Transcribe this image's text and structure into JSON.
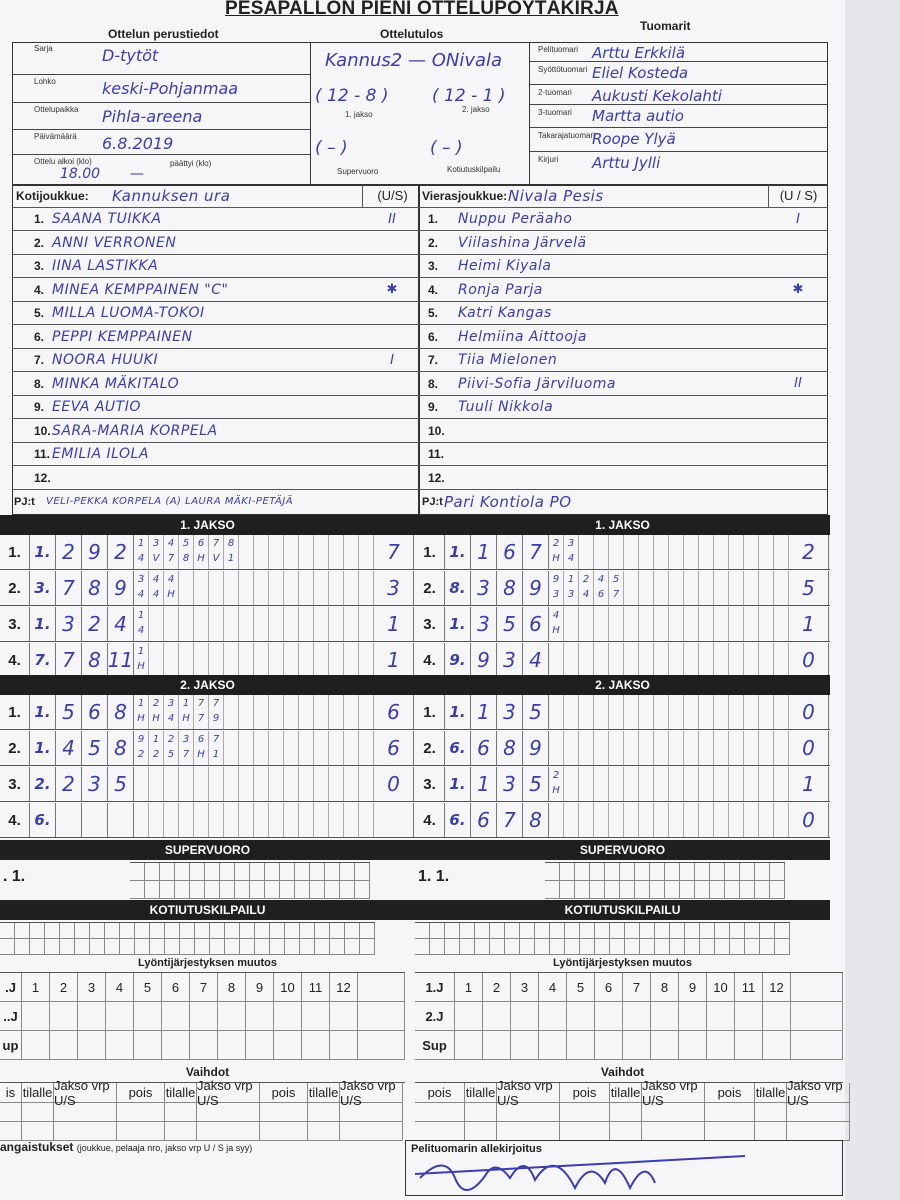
{
  "title": "PESÄPALLON PIENI OTTELUPÖYTÄKIRJA",
  "headers": {
    "basic": "Ottelun perustiedot",
    "result": "Ottelutulos",
    "referees": "Tuomarit"
  },
  "basic": [
    {
      "label": "Sarja",
      "value": "D-tytöt"
    },
    {
      "label": "Lohko",
      "value": "keski-Pohjanmaa"
    },
    {
      "label": "Ottelupaikka",
      "value": "Pihla-areena"
    },
    {
      "label": "Päivämäärä",
      "value": "6.8.2019"
    }
  ],
  "start": {
    "label": "Ottelu alkoi (klo)",
    "value": "18.00",
    "end_label": "päättyi (klo)",
    "end_value": "—"
  },
  "result": {
    "teams": "Kannus2 — ONivala",
    "jakso1": "( 12 - 8 )",
    "jakso2": "( 12 - 1 )",
    "jakso1_label": "1. jakso",
    "jakso2_label": "2. jakso",
    "super": "(   –   )",
    "kotiutus": "(   –   )",
    "super_label": "Supervuoro",
    "kotiutus_label": "Kotiutuskilpailu"
  },
  "referees": [
    {
      "label": "Pelituomari",
      "value": "Arttu Erkkilä"
    },
    {
      "label": "Syöttötuomari",
      "value": "Eliel Kosteda"
    },
    {
      "label": "2-tuomari",
      "value": "Aukusti Kekolahti"
    },
    {
      "label": "3-tuomari",
      "value": "Martta autio"
    },
    {
      "label": "Takarajatuomari",
      "value": "Roope Ylyä"
    },
    {
      "label": "Kirjuri",
      "value": "Arttu Jylli"
    }
  ],
  "home": {
    "label": "Kotijoukkue:",
    "name": "Kannuksen urа",
    "us": "(U/S)",
    "us_selected": "S",
    "players": [
      {
        "n": "1.",
        "name": "SAANA TUIKKA",
        "m": "II"
      },
      {
        "n": "2.",
        "name": "ANNI VERRONEN",
        "m": ""
      },
      {
        "n": "3.",
        "name": "IINA LASTIKKA",
        "m": ""
      },
      {
        "n": "4.",
        "name": "MINEA KEMPPAINEN \"C\"",
        "m": "✱"
      },
      {
        "n": "5.",
        "name": "MILLA LUOMA-TOKOI",
        "m": ""
      },
      {
        "n": "6.",
        "name": "PEPPI KEMPPAINEN",
        "m": ""
      },
      {
        "n": "7.",
        "name": "NOORA HUUKI",
        "m": "I"
      },
      {
        "n": "8.",
        "name": "MINKA MÄKITALO",
        "m": ""
      },
      {
        "n": "9.",
        "name": "EEVA AUTIO",
        "m": ""
      },
      {
        "n": "10.",
        "name": "SARA-MARIA KORPELA",
        "m": ""
      },
      {
        "n": "11.",
        "name": "EMILIA ILOLA",
        "m": ""
      },
      {
        "n": "12.",
        "name": "",
        "m": ""
      }
    ],
    "pj_label": "PJ:t",
    "pj": "VELI-PEKKA KORPELA (A) LAURA MÄKI-PETÄJÄ"
  },
  "away": {
    "label": "Vierasjoukkue:",
    "name": "Nivala Pesis",
    "us": "(U / S)",
    "players": [
      {
        "n": "1.",
        "name": "Nuppu Peräaho",
        "m": "I"
      },
      {
        "n": "2.",
        "name": "Viilashina Järvelä",
        "m": ""
      },
      {
        "n": "3.",
        "name": "Heimi Kiyala",
        "m": ""
      },
      {
        "n": "4.",
        "name": "Ronja Parja",
        "m": "✱"
      },
      {
        "n": "5.",
        "name": "Katri Kangas",
        "m": ""
      },
      {
        "n": "6.",
        "name": "Helmiina Aittoоja",
        "m": ""
      },
      {
        "n": "7.",
        "name": "Tiia Mielonen",
        "m": ""
      },
      {
        "n": "8.",
        "name": "Piivi-Sofia Järviluoma",
        "m": "II"
      },
      {
        "n": "9.",
        "name": "Tuuli Nikkola",
        "m": ""
      },
      {
        "n": "10.",
        "name": "",
        "m": ""
      },
      {
        "n": "11.",
        "name": "",
        "m": ""
      },
      {
        "n": "12.",
        "name": "",
        "m": ""
      }
    ],
    "pj_label": "PJ:t",
    "pj": "Pari Kontiola PO"
  },
  "periods": [
    {
      "title": "1. JAKSO",
      "home": [
        {
          "l": "1.",
          "c": [
            "1.",
            "2",
            "9",
            "2"
          ],
          "t": [
            "1",
            "3",
            "4",
            "5",
            "6",
            "7",
            "8"
          ],
          "b": [
            "4",
            "V",
            "7",
            "8",
            "H",
            "V",
            "1"
          ],
          "r": "7"
        },
        {
          "l": "2.",
          "c": [
            "3.",
            "7",
            "8",
            "9"
          ],
          "t": [
            "3",
            "4",
            "4"
          ],
          "b": [
            "4",
            "4",
            "H"
          ],
          "r": "3"
        },
        {
          "l": "3.",
          "c": [
            "1.",
            "3",
            "2",
            "4"
          ],
          "t": [
            "1"
          ],
          "b": [
            "4"
          ],
          "r": "1"
        },
        {
          "l": "4.",
          "c": [
            "7.",
            "7",
            "8",
            "11"
          ],
          "t": [
            "1"
          ],
          "b": [
            "H"
          ],
          "r": "1"
        }
      ],
      "away": [
        {
          "l": "1.",
          "c": [
            "1.",
            "1",
            "6",
            "7"
          ],
          "t": [
            "2",
            "3"
          ],
          "b": [
            "H",
            "4"
          ],
          "r": "2"
        },
        {
          "l": "2.",
          "c": [
            "8.",
            "3",
            "8",
            "9"
          ],
          "t": [
            "9",
            "1",
            "2",
            "4",
            "5"
          ],
          "b": [
            "3",
            "3",
            "4",
            "6",
            "7"
          ],
          "r": "5"
        },
        {
          "l": "3.",
          "c": [
            "1.",
            "3",
            "5",
            "6"
          ],
          "t": [
            "4"
          ],
          "b": [
            "H"
          ],
          "r": "1"
        },
        {
          "l": "4.",
          "c": [
            "9.",
            "9",
            "3",
            "4"
          ],
          "t": [],
          "b": [],
          "r": "0"
        }
      ]
    },
    {
      "title": "2. JAKSO",
      "home": [
        {
          "l": "1.",
          "c": [
            "1.",
            "5",
            "6",
            "8"
          ],
          "t": [
            "1",
            "2",
            "3",
            "1",
            "7",
            "7"
          ],
          "b": [
            "H",
            "H",
            "4",
            "H",
            "7",
            "9"
          ],
          "r": "6"
        },
        {
          "l": "2.",
          "c": [
            "1.",
            "4",
            "5",
            "8"
          ],
          "t": [
            "9",
            "1",
            "2",
            "3",
            "6",
            "7"
          ],
          "b": [
            "2",
            "2",
            "5",
            "7",
            "H",
            "1"
          ],
          "r": "6"
        },
        {
          "l": "3.",
          "c": [
            "2.",
            "2",
            "3",
            "5"
          ],
          "t": [],
          "b": [],
          "r": "0"
        },
        {
          "l": "4.",
          "c": [
            "6.",
            "",
            "",
            ""
          ],
          "t": [],
          "b": [],
          "r": ""
        }
      ],
      "away": [
        {
          "l": "1.",
          "c": [
            "1.",
            "1",
            "3",
            "5"
          ],
          "t": [],
          "b": [],
          "r": "0"
        },
        {
          "l": "2.",
          "c": [
            "6.",
            "6",
            "8",
            "9"
          ],
          "t": [],
          "b": [],
          "r": "0"
        },
        {
          "l": "3.",
          "c": [
            "1.",
            "1",
            "3",
            "5"
          ],
          "t": [
            "2"
          ],
          "b": [
            "H"
          ],
          "r": "1"
        },
        {
          "l": "4.",
          "c": [
            "6.",
            "6",
            "7",
            "8"
          ],
          "t": [],
          "b": [],
          "r": "0"
        }
      ]
    }
  ],
  "super": {
    "title": "SUPERVUORO",
    "home_row": ". 1.",
    "away_row": "1. 1."
  },
  "kotiutus": {
    "title": "KOTIUTUSKILPAILU"
  },
  "order_change": {
    "title": "Lyöntijärjestyksen muutos",
    "home_rows": [
      ".J",
      "..J",
      "up"
    ],
    "away_rows": [
      "1.J",
      "2.J",
      "Sup"
    ],
    "cols": [
      "1",
      "2",
      "3",
      "4",
      "5",
      "6",
      "7",
      "8",
      "9",
      "10",
      "11",
      "12"
    ]
  },
  "subs": {
    "title": "Vaihdot",
    "cols": [
      "pois",
      "tilalle",
      "Jakso vrp U/S"
    ],
    "home_first": "is"
  },
  "penalties": {
    "label": "angaistukset",
    "hint": "(joukkue, pelaaja nro, jakso vrp U / S ja syy)"
  },
  "signature": {
    "label": "Pelituomarin allekirjoitus",
    "value": "Arttu Erkkilä"
  },
  "colors": {
    "ink": "#3a3db0",
    "band": "#1f1f1f",
    "paper": "#f6f5f7"
  }
}
